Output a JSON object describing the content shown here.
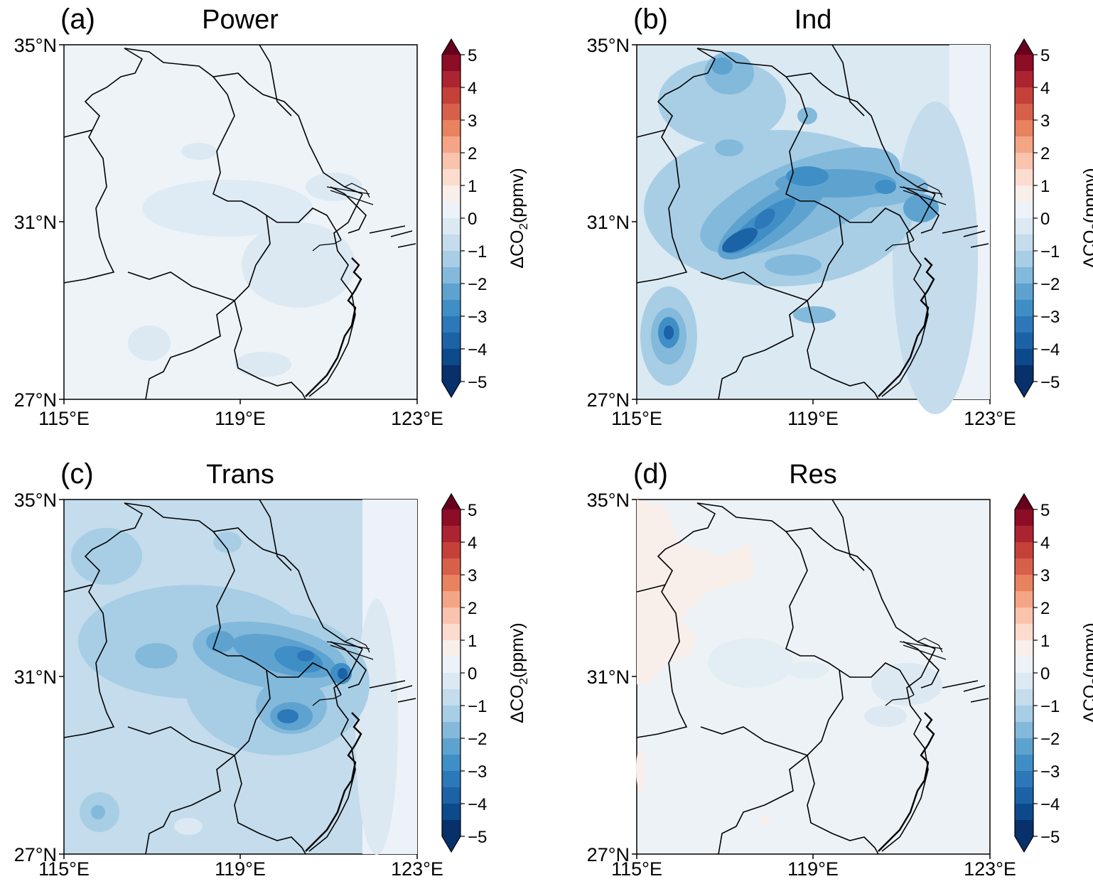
{
  "colorbar": {
    "label_prefix": "ΔCO",
    "label_sub": "2",
    "label_suffix": "(ppmv)",
    "ticks": [
      "5",
      "4",
      "3",
      "2",
      "1",
      "0",
      "−1",
      "−2",
      "−3",
      "−4",
      "−5"
    ],
    "min": -5,
    "max": 5,
    "step": 0.5,
    "colormap": "RdBu_r",
    "colors": [
      "#08306b",
      "#0d4a8c",
      "#1c62a7",
      "#2c78b9",
      "#3f8fc6",
      "#5ea3d0",
      "#83b9db",
      "#a7cee5",
      "#c4dcec",
      "#dce9f3",
      "#ecf2f7",
      "#f8eeea",
      "#fbdccf",
      "#f9c3ad",
      "#f4a585",
      "#e9825f",
      "#d7604a",
      "#c44039",
      "#ac2431",
      "#8c0d25",
      "#67001f"
    ]
  },
  "axes": {
    "x_ticks": [
      "115°E",
      "119°E",
      "123°E"
    ],
    "y_ticks": [
      "35°N",
      "31°N",
      "27°N"
    ],
    "lon_range": [
      115,
      123
    ],
    "lat_range": [
      27,
      35
    ]
  },
  "panels": [
    {
      "letter": "(a)",
      "title": "Power",
      "background": "#edf3f7"
    },
    {
      "letter": "(b)",
      "title": "Ind",
      "background": "#dbe9f3"
    },
    {
      "letter": "(c)",
      "title": "Trans",
      "background": "#dce9f3"
    },
    {
      "letter": "(d)",
      "title": "Res",
      "background": "#edf2f6"
    }
  ]
}
